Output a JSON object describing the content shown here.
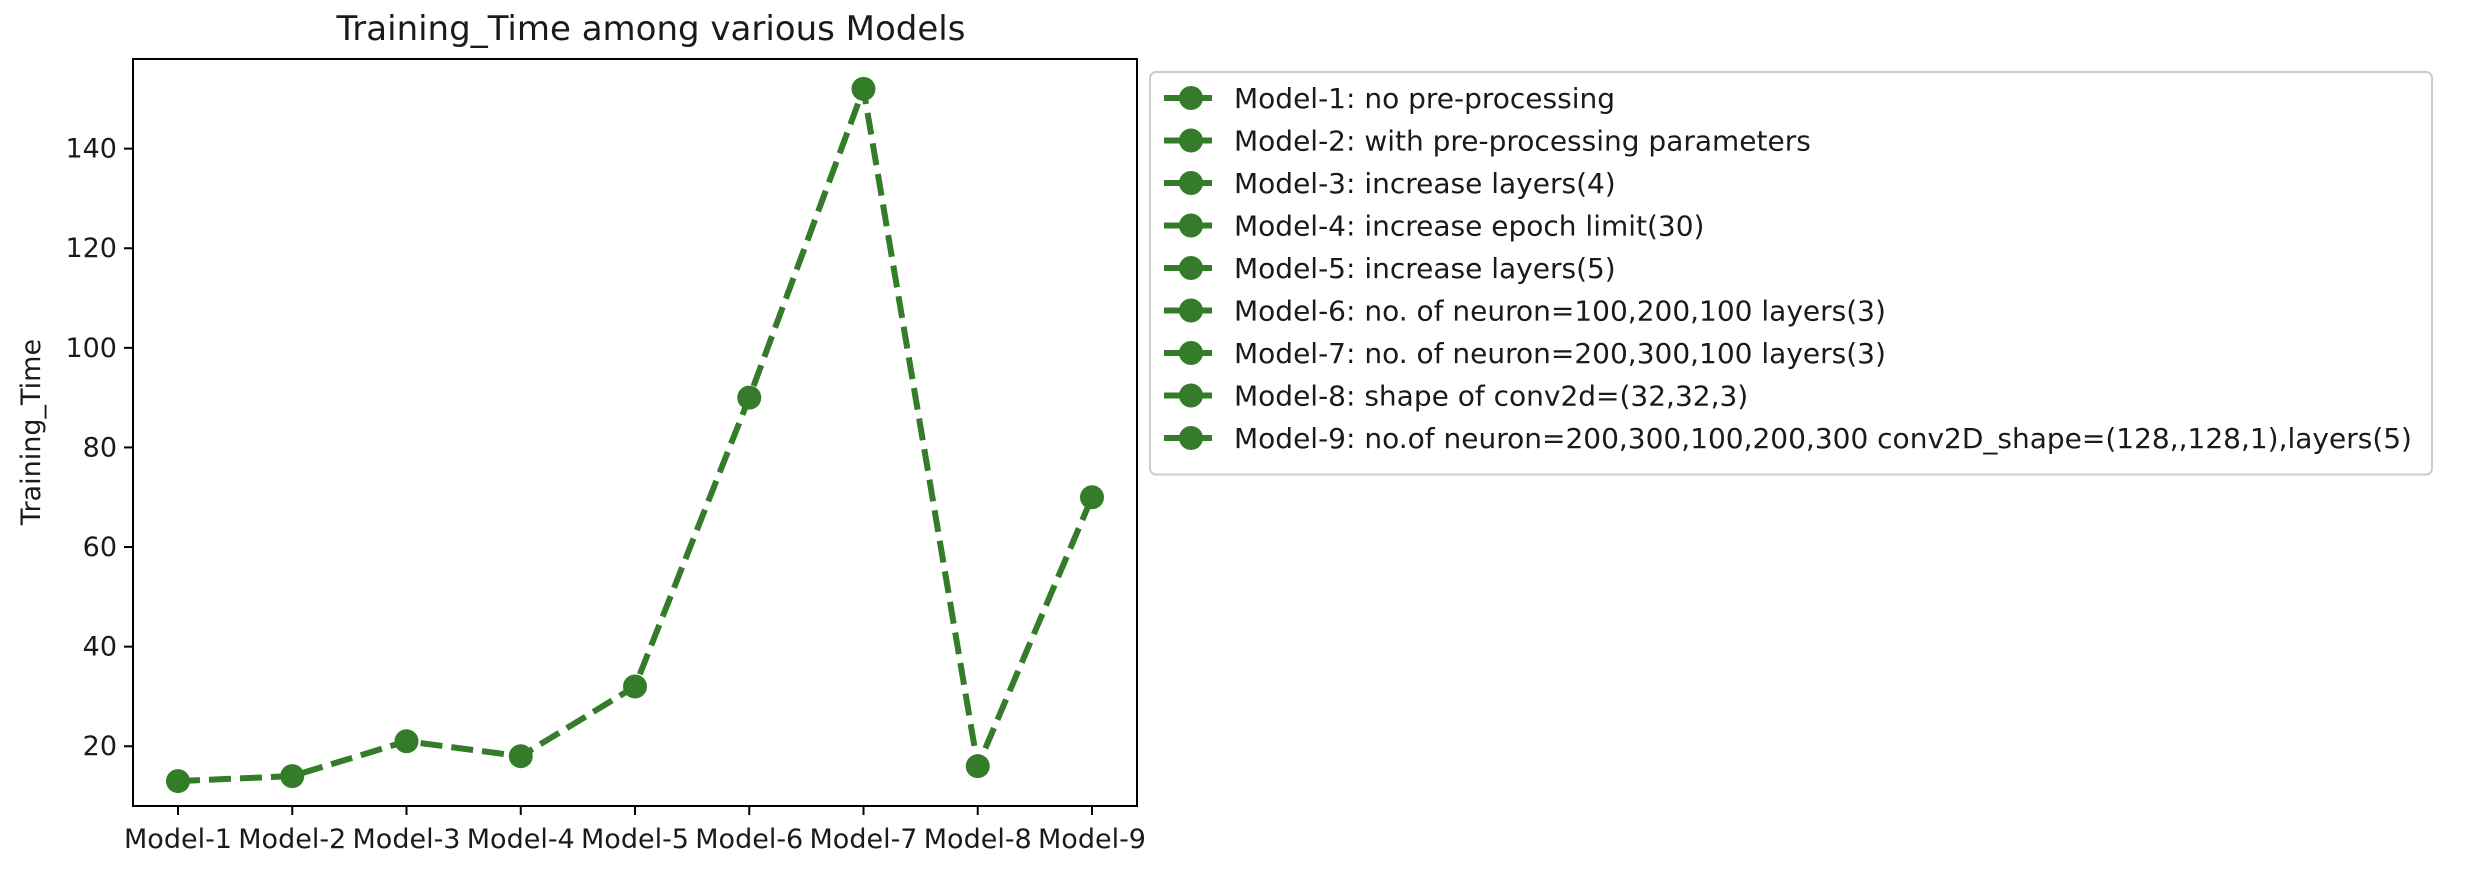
{
  "chart_data": {
    "type": "line",
    "title": "Training_Time among various Models",
    "xlabel": "",
    "ylabel": "Training_Time",
    "categories": [
      "Model-1",
      "Model-2",
      "Model-3",
      "Model-4",
      "Model-5",
      "Model-6",
      "Model-7",
      "Model-8",
      "Model-9"
    ],
    "values": [
      13,
      14,
      21,
      18,
      32,
      90,
      152,
      16,
      70
    ],
    "ylim": [
      8,
      158
    ],
    "yticks": [
      20,
      40,
      60,
      80,
      100,
      120,
      140
    ],
    "line_style": "dashed",
    "marker": "circle",
    "color": "#347b2a",
    "grid": false,
    "legend_placement": "outside-right",
    "legend": [
      "Model-1: no pre-processing",
      "Model-2: with pre-processing parameters",
      "Model-3: increase layers(4)",
      "Model-4: increase epoch limit(30)",
      "Model-5: increase layers(5)",
      "Model-6: no. of neuron=100,200,100 layers(3)",
      "Model-7: no. of neuron=200,300,100 layers(3)",
      "Model-8: shape of conv2d=(32,32,3)",
      "Model-9: no.of neuron=200,300,100,200,300 conv2D_shape=(128,,128,1),layers(5)"
    ]
  }
}
